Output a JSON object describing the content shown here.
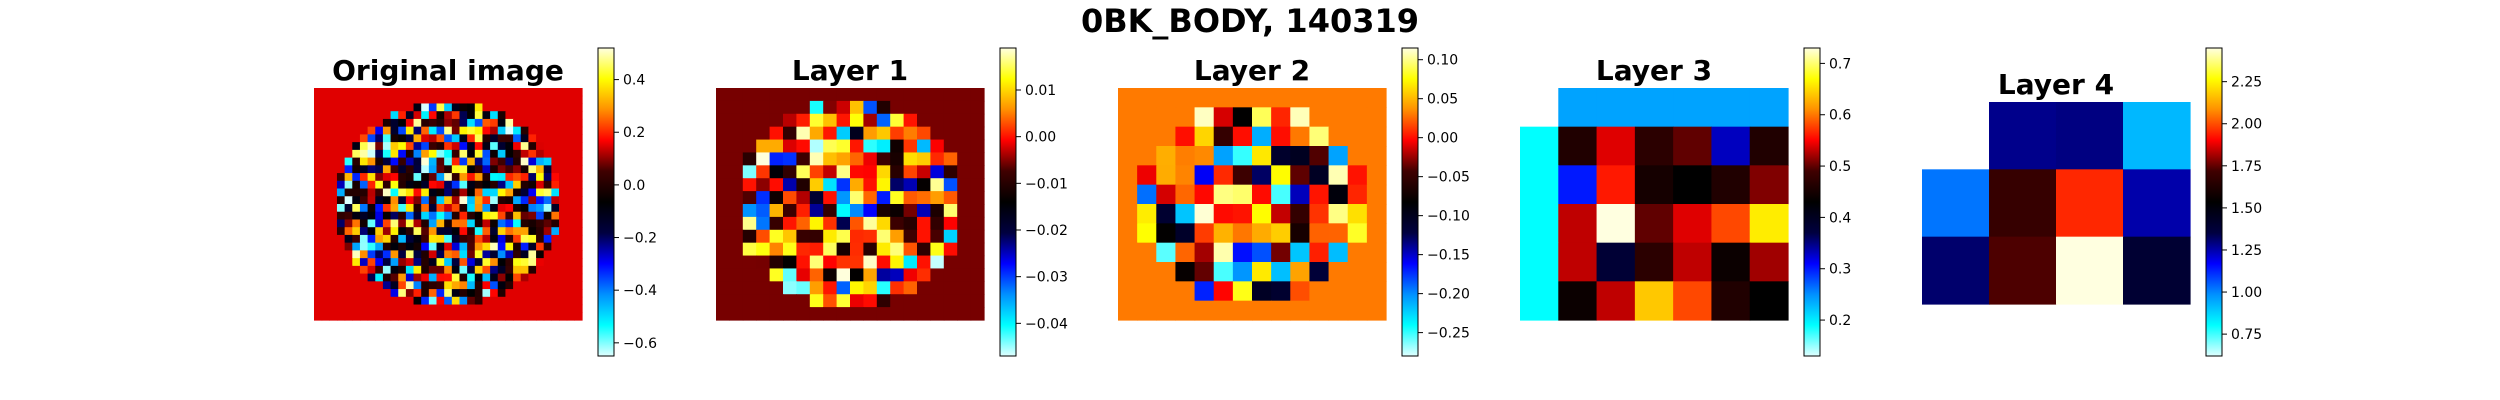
{
  "figure": {
    "title": "0BK_BODY, 140319"
  },
  "colors": {
    "cmap": "flag-like diverging (cyan-blue-black-red-yellow)",
    "stops": [
      "#e0ffff",
      "#00ffff",
      "#0090ff",
      "#0000ff",
      "#000040",
      "#000000",
      "#400000",
      "#ff0000",
      "#ff9000",
      "#ffff00",
      "#ffffe0"
    ]
  },
  "chart_data": [
    {
      "type": "heatmap",
      "title": "Original image",
      "colorbar": {
        "vmin": -0.65,
        "vmax": 0.52,
        "ticks": [
          0.4,
          0.2,
          0.0,
          -0.2,
          -0.4,
          -0.6
        ],
        "tick_labels": [
          "0.4",
          "0.2",
          "0.0",
          "−0.2",
          "−0.4",
          "−0.6"
        ]
      },
      "grid": {
        "rows": 30,
        "cols": 35,
        "note": "noisy circular region of values in roughly [-0.6, 0.5] surrounded by constant background ~0.15"
      },
      "background_value": 0.15
    },
    {
      "type": "heatmap",
      "title": "Layer 1",
      "colorbar": {
        "vmin": -0.047,
        "vmax": 0.019,
        "ticks": [
          0.01,
          0.0,
          -0.01,
          -0.02,
          -0.03,
          -0.04
        ],
        "tick_labels": [
          "0.01",
          "0.00",
          "−0.01",
          "−0.02",
          "−0.03",
          "−0.04"
        ]
      },
      "grid": {
        "rows": 18,
        "cols": 20
      },
      "background_value": -0.0055
    },
    {
      "type": "heatmap",
      "title": "Layer 2",
      "colorbar": {
        "vmin": -0.28,
        "vmax": 0.115,
        "ticks": [
          0.1,
          0.05,
          0.0,
          -0.05,
          -0.1,
          -0.15,
          -0.2,
          -0.25
        ],
        "tick_labels": [
          "0.10",
          "0.05",
          "0.00",
          "−0.05",
          "−0.10",
          "−0.15",
          "−0.20",
          "−0.25"
        ]
      },
      "grid": {
        "rows": 12,
        "cols": 14
      },
      "background_value": 0.03
    },
    {
      "type": "heatmap",
      "title": "Layer 3",
      "colorbar": {
        "vmin": 0.13,
        "vmax": 0.73,
        "ticks": [
          0.7,
          0.6,
          0.5,
          0.4,
          0.3,
          0.2
        ],
        "tick_labels": [
          "0.7",
          "0.6",
          "0.5",
          "0.4",
          "0.3",
          "0.2"
        ]
      },
      "grid": {
        "rows": 6,
        "cols": 7,
        "values": [
          [
            null,
            0.24,
            0.24,
            0.24,
            0.24,
            0.24,
            0.24
          ],
          [
            0.19,
            0.46,
            0.54,
            0.47,
            0.5,
            0.33,
            0.46
          ],
          [
            0.19,
            0.3,
            0.56,
            0.45,
            0.43,
            0.46,
            0.51
          ],
          [
            0.19,
            0.53,
            0.73,
            0.5,
            0.54,
            0.58,
            0.66
          ],
          [
            0.19,
            0.53,
            0.38,
            0.47,
            0.53,
            0.44,
            0.52
          ],
          [
            0.19,
            0.44,
            0.53,
            0.64,
            0.58,
            0.46,
            0.43
          ]
        ]
      }
    },
    {
      "type": "heatmap",
      "title": "Layer 4",
      "colorbar": {
        "vmin": 0.62,
        "vmax": 2.45,
        "ticks": [
          2.25,
          2.0,
          1.75,
          1.5,
          1.25,
          1.0,
          0.75
        ],
        "tick_labels": [
          "2.25",
          "2.00",
          "1.75",
          "1.50",
          "1.25",
          "1.00",
          "0.75"
        ]
      },
      "grid": {
        "rows": 3,
        "cols": 4,
        "values": [
          [
            null,
            1.28,
            1.29,
            0.92
          ],
          [
            1.02,
            1.69,
            1.95,
            1.25
          ],
          [
            1.31,
            1.73,
            2.45,
            1.39
          ]
        ]
      }
    }
  ]
}
